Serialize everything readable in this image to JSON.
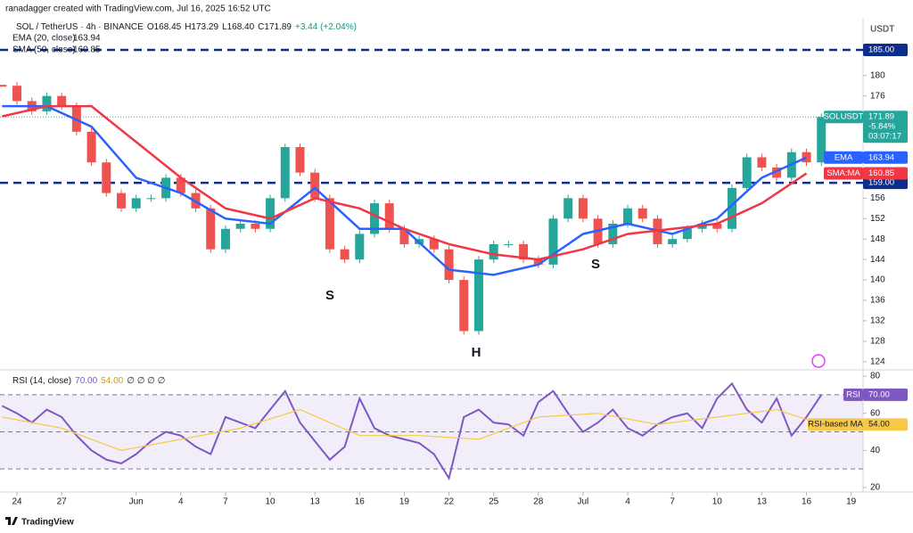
{
  "header": {
    "credit": "ranadagger created with TradingView.com, Jul 16, 2025 16:52 UTC",
    "symbol": "SOL / TetherUS · 4h · BINANCE",
    "open": "O168.45",
    "high": "H173.29",
    "low": "L168.40",
    "close": "C171.89",
    "change": "+3.44 (+2.04%)",
    "currency": "USDT",
    "logo": "TradingView"
  },
  "chart_data": [
    {
      "type": "candlestick",
      "x": [
        0,
        1,
        2,
        3,
        4,
        5,
        6,
        7,
        8,
        9,
        10,
        11,
        12,
        13,
        14,
        15,
        16,
        17,
        18,
        19,
        20,
        21,
        22,
        23,
        24,
        25,
        26,
        27,
        28,
        29,
        30,
        31,
        32,
        33,
        34,
        35,
        36,
        37,
        38,
        39,
        40,
        41,
        42,
        43,
        44,
        45,
        46,
        47,
        48,
        49,
        50,
        51,
        52,
        53,
        54,
        55
      ],
      "values": [
        178,
        175,
        173,
        176,
        174,
        169,
        163,
        157,
        154,
        156,
        156,
        160,
        157,
        154,
        146,
        150,
        151,
        150,
        156,
        166,
        161,
        156,
        146,
        144,
        149,
        155,
        150,
        147,
        148,
        146,
        140,
        130,
        144,
        147,
        147,
        144,
        143,
        152,
        156,
        152,
        147,
        151,
        154,
        152,
        147,
        148,
        150,
        151,
        150,
        158,
        164,
        162,
        160,
        165,
        163,
        171.89
      ],
      "up_color": "#26a69a",
      "down_color": "#ef5350",
      "series": [
        {
          "name": "EMA (20, close)",
          "label": "EMA",
          "last": 163.94,
          "color": "#2962ff",
          "x": [
            0,
            3,
            6,
            9,
            12,
            15,
            18,
            21,
            24,
            27,
            30,
            33,
            36,
            39,
            42,
            45,
            48,
            51,
            54
          ],
          "values": [
            174,
            174,
            170,
            160,
            157,
            152,
            151,
            158,
            150,
            150,
            142,
            141,
            143,
            149,
            151,
            149,
            152,
            160,
            163.94
          ]
        },
        {
          "name": "SMA (50, close)",
          "label": "SMA:MA",
          "last": 160.85,
          "color": "#f23645",
          "x": [
            0,
            3,
            6,
            9,
            12,
            15,
            18,
            21,
            24,
            27,
            30,
            33,
            36,
            39,
            42,
            45,
            48,
            51,
            54
          ],
          "values": [
            172,
            174,
            174,
            167,
            160,
            154,
            152,
            156,
            154,
            150,
            147,
            145,
            144,
            146,
            149,
            150,
            151,
            155,
            160.85
          ]
        }
      ],
      "levels": [
        {
          "value": 185,
          "label": "185.00"
        },
        {
          "value": 159,
          "label": "159.00"
        }
      ],
      "level_color": "#0c2d8c",
      "price_tag": {
        "symbol": "SOLUSDT",
        "change": "-5.84%",
        "countdown": "03:07:17"
      },
      "annotations": [
        "S",
        "H",
        "S"
      ],
      "xlim": [
        -0.14,
        57.8
      ],
      "ylim": [
        122.4,
        187.8
      ],
      "yticks": [
        124,
        128,
        132,
        136,
        140,
        144,
        148,
        152,
        156,
        160,
        164,
        168,
        172,
        176,
        180
      ],
      "xticks": [
        {
          "value": 1,
          "label": "24"
        },
        {
          "value": 4,
          "label": "27"
        },
        {
          "value": 9,
          "label": "Jun"
        },
        {
          "value": 12,
          "label": "4"
        },
        {
          "value": 15,
          "label": "7"
        },
        {
          "value": 18,
          "label": "10"
        },
        {
          "value": 21,
          "label": "13"
        },
        {
          "value": 24,
          "label": "16"
        },
        {
          "value": 27,
          "label": "19"
        },
        {
          "value": 30,
          "label": "22"
        },
        {
          "value": 33,
          "label": "25"
        },
        {
          "value": 36,
          "label": "28"
        },
        {
          "value": 39,
          "label": "Jul"
        },
        {
          "value": 42,
          "label": "4"
        },
        {
          "value": 45,
          "label": "7"
        },
        {
          "value": 48,
          "label": "10"
        },
        {
          "value": 51,
          "label": "13"
        },
        {
          "value": 54,
          "label": "16"
        },
        {
          "value": 57,
          "label": "19"
        }
      ]
    },
    {
      "type": "line",
      "title": "RSI (14, close)",
      "legend_extra": "∅ ∅ ∅ ∅",
      "x": [
        0,
        1,
        2,
        3,
        4,
        5,
        6,
        7,
        8,
        9,
        10,
        11,
        12,
        13,
        14,
        15,
        16,
        17,
        18,
        19,
        20,
        21,
        22,
        23,
        24,
        25,
        26,
        27,
        28,
        29,
        30,
        31,
        32,
        33,
        34,
        35,
        36,
        37,
        38,
        39,
        40,
        41,
        42,
        43,
        44,
        45,
        46,
        47,
        48,
        49,
        50,
        51,
        52,
        53,
        54,
        55
      ],
      "series": [
        {
          "name": "RSI",
          "label": "RSI",
          "last": 70,
          "last_label": "70.00",
          "color": "#7e57c2",
          "values": [
            64,
            60,
            55,
            62,
            58,
            48,
            40,
            35,
            33,
            38,
            45,
            50,
            48,
            42,
            38,
            58,
            55,
            52,
            62,
            72,
            55,
            45,
            35,
            42,
            68,
            52,
            48,
            46,
            44,
            38,
            25,
            58,
            62,
            55,
            54,
            48,
            66,
            72,
            60,
            50,
            55,
            62,
            52,
            48,
            54,
            58,
            60,
            52,
            68,
            76,
            62,
            55,
            68,
            48,
            58,
            70
          ]
        },
        {
          "name": "RSI-based MA",
          "label": "RSI-based MA",
          "last": 54,
          "last_label": "54.00",
          "color": "#f7c948",
          "x": [
            0,
            4,
            8,
            12,
            16,
            20,
            24,
            28,
            32,
            36,
            40,
            44,
            48,
            52,
            55
          ],
          "values": [
            58,
            52,
            40,
            46,
            52,
            62,
            48,
            48,
            46,
            58,
            60,
            54,
            58,
            62,
            54
          ]
        }
      ],
      "bands": [
        30,
        50,
        70
      ],
      "xlim": [
        -0.14,
        57.8
      ],
      "ylim": [
        17.6,
        83.4
      ],
      "yticks": [
        20,
        40,
        60,
        80
      ]
    }
  ]
}
